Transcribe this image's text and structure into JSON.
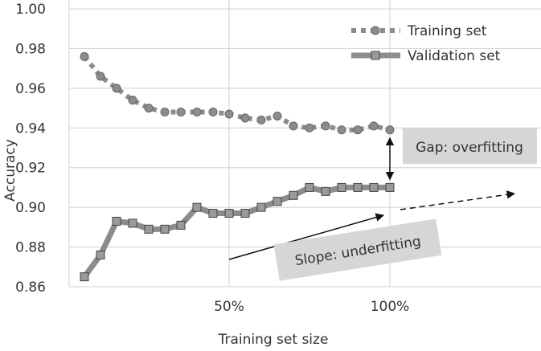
{
  "chart_data": {
    "type": "line",
    "xlabel": "Training set size",
    "ylabel": "Accuracy",
    "ylim": [
      0.86,
      1.0
    ],
    "xlim": [
      1,
      28
    ],
    "y_ticks": [
      "1.00",
      "0.98",
      "0.96",
      "0.94",
      "0.92",
      "0.90",
      "0.88",
      "0.86"
    ],
    "x_tick_labels": [
      {
        "x": 10,
        "label": "50%"
      },
      {
        "x": 20,
        "label": "100%"
      }
    ],
    "grid": true,
    "legend_position": "top-right",
    "series": [
      {
        "name": "Training set",
        "style": "dotted-circle",
        "color": "#8c8c8c",
        "x": [
          1,
          2,
          3,
          4,
          5,
          6,
          7,
          8,
          9,
          10,
          11,
          12,
          13,
          14,
          15,
          16,
          17,
          18,
          19,
          20
        ],
        "values": [
          0.976,
          0.966,
          0.96,
          0.954,
          0.95,
          0.948,
          0.948,
          0.948,
          0.948,
          0.947,
          0.945,
          0.944,
          0.946,
          0.941,
          0.94,
          0.941,
          0.939,
          0.939,
          0.941,
          0.939
        ]
      },
      {
        "name": "Validation set",
        "style": "solid-square",
        "color": "#8c8c8c",
        "x": [
          1,
          2,
          3,
          4,
          5,
          6,
          7,
          8,
          9,
          10,
          11,
          12,
          13,
          14,
          15,
          16,
          17,
          18,
          19,
          20
        ],
        "values": [
          0.865,
          0.876,
          0.893,
          0.892,
          0.889,
          0.889,
          0.891,
          0.9,
          0.897,
          0.897,
          0.897,
          0.9,
          0.903,
          0.906,
          0.91,
          0.908,
          0.91,
          0.91,
          0.91,
          0.91
        ]
      }
    ],
    "annotations": {
      "gap_label": "Gap: overfitting",
      "slope_label": "Slope: underfitting"
    },
    "annotation_color": "#d6d6d6"
  }
}
